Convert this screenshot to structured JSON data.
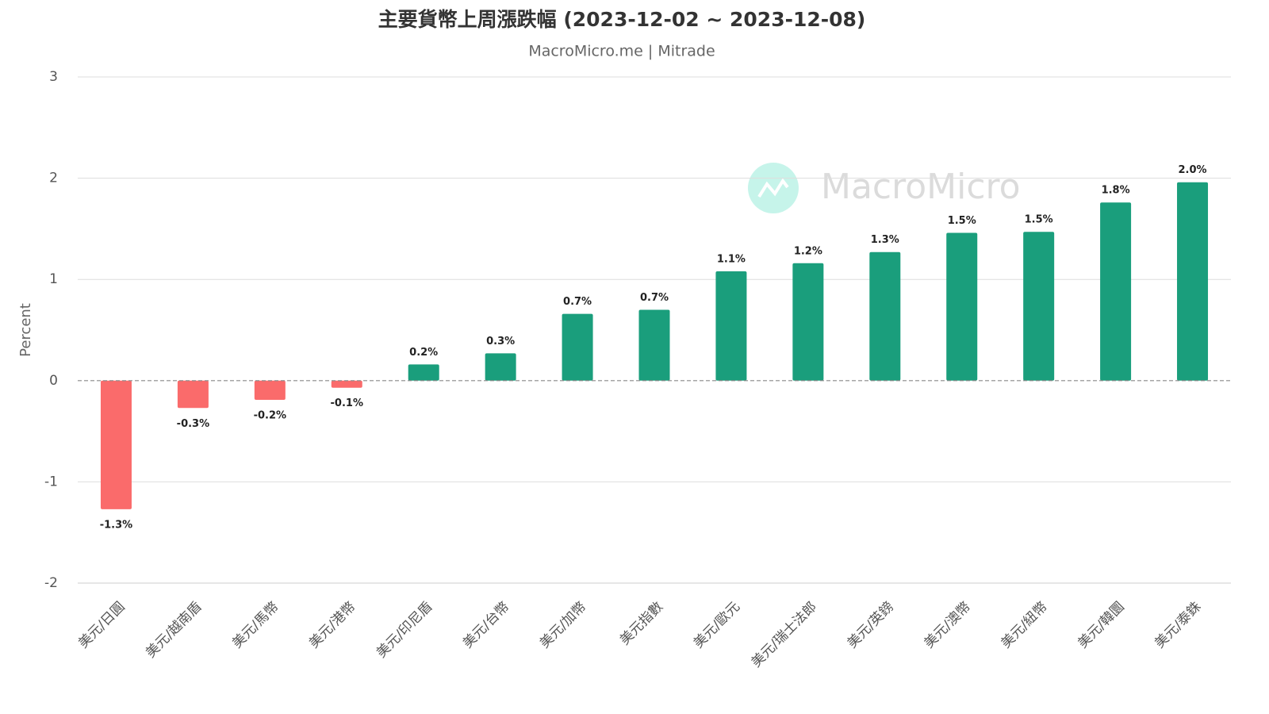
{
  "chart_data": {
    "type": "bar",
    "title": "主要貨幣上周漲跌幅 (2023-12-02 ~ 2023-12-08)",
    "subtitle": "MacroMicro.me | Mitrade",
    "watermark": "MacroMicro",
    "y_label": "Percent",
    "categories": [
      "美元/日圓",
      "美元/越南盾",
      "美元/馬幣",
      "美元/港幣",
      "美元/印尼盾",
      "美元/台幣",
      "美元/加幣",
      "美元指數",
      "美元/歐元",
      "美元/瑞士法郎",
      "美元/英鎊",
      "美元/澳幣",
      "美元/紐幣",
      "美元/韓圜",
      "美元/泰銖"
    ],
    "values": [
      -1.27,
      -0.27,
      -0.19,
      -0.07,
      0.16,
      0.27,
      0.66,
      0.7,
      1.08,
      1.16,
      1.27,
      1.46,
      1.47,
      1.76,
      1.96
    ],
    "value_labels": [
      "-1.3%",
      "-0.3%",
      "-0.2%",
      "-0.1%",
      "0.2%",
      "0.3%",
      "0.7%",
      "0.7%",
      "1.1%",
      "1.2%",
      "1.3%",
      "1.5%",
      "1.5%",
      "1.8%",
      "2.0%"
    ],
    "color_positive": "#1a9e7c",
    "color_negative": "#fa6b6b",
    "ylim": [
      -2,
      3
    ],
    "yticks": [
      -2,
      -1,
      0,
      1,
      2,
      3
    ],
    "grid": true
  }
}
